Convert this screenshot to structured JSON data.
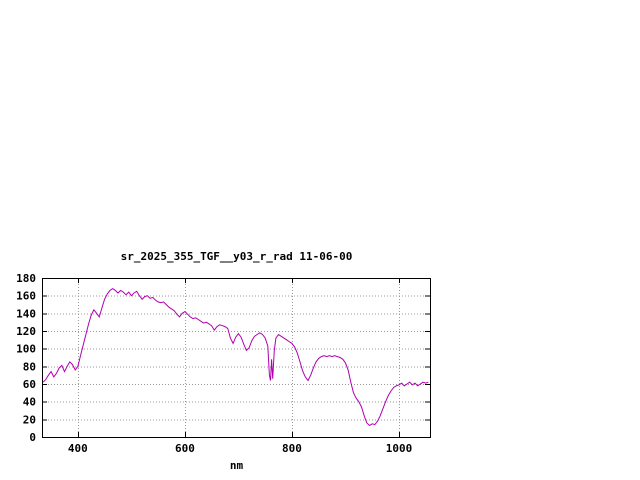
{
  "window": {
    "background": "#ffffff"
  },
  "chart_data": {
    "type": "line",
    "title": "sr_2025_355_TGF__y03_r_rad 11-06-00",
    "xlabel": "nm",
    "ylabel": "",
    "xlim": [
      333,
      1058
    ],
    "ylim": [
      0,
      180
    ],
    "xticks": [
      400,
      600,
      800,
      1000
    ],
    "yticks": [
      0,
      20,
      40,
      60,
      80,
      100,
      120,
      140,
      160,
      180
    ],
    "grid": true,
    "legend": "none",
    "line_color": "#b000b0",
    "grid_color": "#9a9a9a",
    "axis_color": "#000000",
    "series": [
      {
        "name": "sr_2025_355_TGF__y03_r_rad",
        "points": [
          [
            335,
            62
          ],
          [
            340,
            65
          ],
          [
            345,
            70
          ],
          [
            350,
            74
          ],
          [
            355,
            68
          ],
          [
            360,
            72
          ],
          [
            365,
            78
          ],
          [
            370,
            81
          ],
          [
            375,
            74
          ],
          [
            380,
            80
          ],
          [
            385,
            85
          ],
          [
            390,
            82
          ],
          [
            395,
            76
          ],
          [
            400,
            80
          ],
          [
            405,
            92
          ],
          [
            410,
            104
          ],
          [
            415,
            116
          ],
          [
            420,
            128
          ],
          [
            425,
            138
          ],
          [
            430,
            144
          ],
          [
            435,
            140
          ],
          [
            440,
            136
          ],
          [
            445,
            146
          ],
          [
            450,
            156
          ],
          [
            455,
            162
          ],
          [
            460,
            166
          ],
          [
            465,
            168
          ],
          [
            470,
            166
          ],
          [
            475,
            163
          ],
          [
            480,
            166
          ],
          [
            485,
            164
          ],
          [
            490,
            161
          ],
          [
            495,
            164
          ],
          [
            500,
            160
          ],
          [
            505,
            163
          ],
          [
            510,
            165
          ],
          [
            515,
            160
          ],
          [
            520,
            156
          ],
          [
            525,
            159
          ],
          [
            530,
            160
          ],
          [
            535,
            157
          ],
          [
            540,
            158
          ],
          [
            545,
            155
          ],
          [
            550,
            153
          ],
          [
            555,
            152
          ],
          [
            560,
            153
          ],
          [
            565,
            150
          ],
          [
            570,
            147
          ],
          [
            575,
            145
          ],
          [
            580,
            143
          ],
          [
            585,
            139
          ],
          [
            590,
            136
          ],
          [
            595,
            140
          ],
          [
            600,
            142
          ],
          [
            605,
            139
          ],
          [
            610,
            136
          ],
          [
            615,
            134
          ],
          [
            620,
            135
          ],
          [
            625,
            133
          ],
          [
            630,
            131
          ],
          [
            635,
            129
          ],
          [
            640,
            130
          ],
          [
            645,
            128
          ],
          [
            650,
            126
          ],
          [
            655,
            121
          ],
          [
            660,
            125
          ],
          [
            665,
            127
          ],
          [
            670,
            126
          ],
          [
            675,
            125
          ],
          [
            680,
            123
          ],
          [
            685,
            112
          ],
          [
            690,
            106
          ],
          [
            695,
            113
          ],
          [
            700,
            117
          ],
          [
            705,
            113
          ],
          [
            710,
            105
          ],
          [
            715,
            98
          ],
          [
            720,
            101
          ],
          [
            725,
            109
          ],
          [
            730,
            114
          ],
          [
            735,
            116
          ],
          [
            740,
            118
          ],
          [
            745,
            116
          ],
          [
            750,
            112
          ],
          [
            755,
            103
          ],
          [
            758,
            70
          ],
          [
            760,
            64
          ],
          [
            762,
            88
          ],
          [
            764,
            66
          ],
          [
            767,
            98
          ],
          [
            770,
            112
          ],
          [
            775,
            116
          ],
          [
            780,
            114
          ],
          [
            785,
            112
          ],
          [
            790,
            110
          ],
          [
            795,
            108
          ],
          [
            800,
            106
          ],
          [
            805,
            102
          ],
          [
            810,
            95
          ],
          [
            815,
            85
          ],
          [
            820,
            75
          ],
          [
            825,
            68
          ],
          [
            830,
            64
          ],
          [
            835,
            70
          ],
          [
            840,
            78
          ],
          [
            845,
            85
          ],
          [
            850,
            89
          ],
          [
            855,
            91
          ],
          [
            860,
            92
          ],
          [
            865,
            91
          ],
          [
            870,
            92
          ],
          [
            875,
            91
          ],
          [
            880,
            92
          ],
          [
            885,
            91
          ],
          [
            890,
            90
          ],
          [
            895,
            88
          ],
          [
            900,
            84
          ],
          [
            905,
            76
          ],
          [
            910,
            62
          ],
          [
            915,
            50
          ],
          [
            920,
            44
          ],
          [
            925,
            40
          ],
          [
            930,
            34
          ],
          [
            935,
            24
          ],
          [
            940,
            16
          ],
          [
            945,
            13
          ],
          [
            950,
            15
          ],
          [
            955,
            14
          ],
          [
            960,
            18
          ],
          [
            965,
            24
          ],
          [
            970,
            32
          ],
          [
            975,
            40
          ],
          [
            980,
            47
          ],
          [
            985,
            52
          ],
          [
            990,
            56
          ],
          [
            995,
            58
          ],
          [
            1000,
            59
          ],
          [
            1005,
            61
          ],
          [
            1010,
            58
          ],
          [
            1015,
            60
          ],
          [
            1020,
            62
          ],
          [
            1025,
            59
          ],
          [
            1030,
            61
          ],
          [
            1035,
            58
          ],
          [
            1040,
            60
          ],
          [
            1045,
            62
          ],
          [
            1050,
            61
          ],
          [
            1055,
            62
          ]
        ]
      }
    ]
  }
}
